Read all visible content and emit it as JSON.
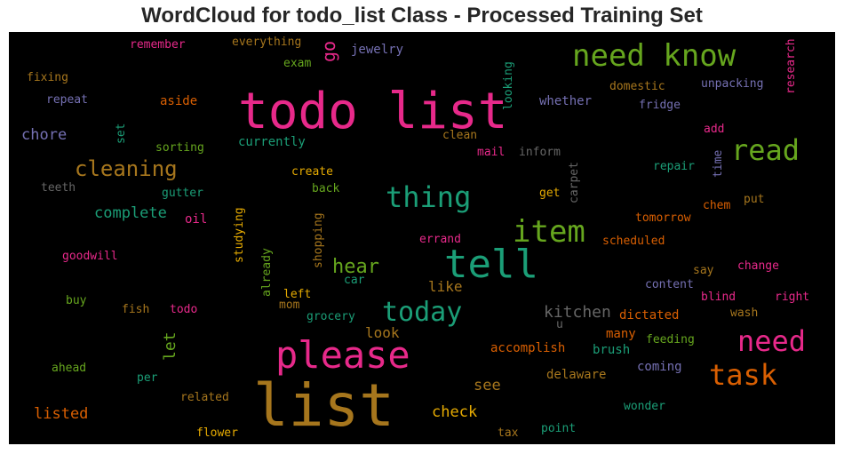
{
  "title": "WordCloud for todo_list Class - Processed Training Set",
  "palette": {
    "magenta": "#e7298a",
    "green": "#66a61e",
    "teal": "#1b9e77",
    "orange": "#d95f02",
    "mustard": "#a6761d",
    "gold": "#e6ab02",
    "purple": "#7570b3",
    "gray": "#666666"
  },
  "words": [
    {
      "id": "list",
      "text": "list",
      "color": "mustard"
    },
    {
      "id": "todo-list",
      "text": "todo list",
      "color": "magenta"
    },
    {
      "id": "please",
      "text": "please",
      "color": "magenta"
    },
    {
      "id": "tell",
      "text": "tell",
      "color": "teal"
    },
    {
      "id": "need-know",
      "text": "need know",
      "color": "green"
    },
    {
      "id": "item",
      "text": "item",
      "color": "green"
    },
    {
      "id": "thing",
      "text": "thing",
      "color": "teal"
    },
    {
      "id": "read",
      "text": "read",
      "color": "green"
    },
    {
      "id": "need",
      "text": "need",
      "color": "magenta"
    },
    {
      "id": "task",
      "text": "task",
      "color": "orange"
    },
    {
      "id": "today",
      "text": "today",
      "color": "teal"
    },
    {
      "id": "cleaning",
      "text": "cleaning",
      "color": "mustard"
    },
    {
      "id": "hear",
      "text": "hear",
      "color": "green"
    },
    {
      "id": "kitchen",
      "text": "kitchen",
      "color": "gray"
    },
    {
      "id": "complete",
      "text": "complete",
      "color": "teal"
    },
    {
      "id": "check",
      "text": "check",
      "color": "gold"
    },
    {
      "id": "listed",
      "text": "listed",
      "color": "orange"
    },
    {
      "id": "chore",
      "text": "chore",
      "color": "purple"
    },
    {
      "id": "go",
      "text": "go",
      "color": "magenta"
    },
    {
      "id": "let",
      "text": "let",
      "color": "green"
    },
    {
      "id": "like",
      "text": "like",
      "color": "mustard"
    },
    {
      "id": "look",
      "text": "look",
      "color": "mustard"
    },
    {
      "id": "see",
      "text": "see",
      "color": "mustard"
    },
    {
      "id": "remember",
      "text": "remember",
      "color": "magenta"
    },
    {
      "id": "everything",
      "text": "everything",
      "color": "mustard"
    },
    {
      "id": "exam",
      "text": "exam",
      "color": "green"
    },
    {
      "id": "jewelry",
      "text": "jewelry",
      "color": "purple"
    },
    {
      "id": "research",
      "text": "research",
      "color": "magenta"
    },
    {
      "id": "fixing",
      "text": "fixing",
      "color": "mustard"
    },
    {
      "id": "repeat",
      "text": "repeat",
      "color": "purple"
    },
    {
      "id": "aside",
      "text": "aside",
      "color": "orange"
    },
    {
      "id": "looking",
      "text": "looking",
      "color": "teal"
    },
    {
      "id": "whether",
      "text": "whether",
      "color": "purple"
    },
    {
      "id": "domestic",
      "text": "domestic",
      "color": "mustard"
    },
    {
      "id": "unpacking",
      "text": "unpacking",
      "color": "purple"
    },
    {
      "id": "fridge",
      "text": "fridge",
      "color": "purple"
    },
    {
      "id": "set",
      "text": "set",
      "color": "teal"
    },
    {
      "id": "sorting",
      "text": "sorting",
      "color": "green"
    },
    {
      "id": "currently",
      "text": "currently",
      "color": "teal"
    },
    {
      "id": "clean",
      "text": "clean",
      "color": "mustard"
    },
    {
      "id": "add",
      "text": "add",
      "color": "magenta"
    },
    {
      "id": "time",
      "text": "time",
      "color": "purple"
    },
    {
      "id": "mail",
      "text": "mail",
      "color": "magenta"
    },
    {
      "id": "inform",
      "text": "inform",
      "color": "gray"
    },
    {
      "id": "carpet",
      "text": "carpet",
      "color": "gray"
    },
    {
      "id": "repair",
      "text": "repair",
      "color": "teal"
    },
    {
      "id": "teeth",
      "text": "teeth",
      "color": "gray"
    },
    {
      "id": "gutter",
      "text": "gutter",
      "color": "teal"
    },
    {
      "id": "create",
      "text": "create",
      "color": "gold"
    },
    {
      "id": "back",
      "text": "back",
      "color": "green"
    },
    {
      "id": "get",
      "text": "get",
      "color": "gold"
    },
    {
      "id": "chem",
      "text": "chem",
      "color": "orange"
    },
    {
      "id": "put",
      "text": "put",
      "color": "mustard"
    },
    {
      "id": "oil",
      "text": "oil",
      "color": "magenta"
    },
    {
      "id": "studying",
      "text": "studying",
      "color": "gold"
    },
    {
      "id": "shopping",
      "text": "shopping",
      "color": "mustard"
    },
    {
      "id": "tomorrow",
      "text": "tomorrow",
      "color": "orange"
    },
    {
      "id": "goodwill",
      "text": "goodwill",
      "color": "magenta"
    },
    {
      "id": "errand",
      "text": "errand",
      "color": "magenta"
    },
    {
      "id": "scheduled",
      "text": "scheduled",
      "color": "orange"
    },
    {
      "id": "already",
      "text": "already",
      "color": "green"
    },
    {
      "id": "car",
      "text": "car",
      "color": "teal"
    },
    {
      "id": "say",
      "text": "say",
      "color": "mustard"
    },
    {
      "id": "change",
      "text": "change",
      "color": "magenta"
    },
    {
      "id": "content",
      "text": "content",
      "color": "purple"
    },
    {
      "id": "left",
      "text": "left",
      "color": "gold"
    },
    {
      "id": "buy",
      "text": "buy",
      "color": "green"
    },
    {
      "id": "mom",
      "text": "mom",
      "color": "mustard"
    },
    {
      "id": "blind",
      "text": "blind",
      "color": "magenta"
    },
    {
      "id": "right",
      "text": "right",
      "color": "magenta"
    },
    {
      "id": "fish",
      "text": "fish",
      "color": "mustard"
    },
    {
      "id": "todo",
      "text": "todo",
      "color": "magenta"
    },
    {
      "id": "grocery",
      "text": "grocery",
      "color": "teal"
    },
    {
      "id": "dictated",
      "text": "dictated",
      "color": "orange"
    },
    {
      "id": "wash",
      "text": "wash",
      "color": "mustard"
    },
    {
      "id": "u",
      "text": "u",
      "color": "gray"
    },
    {
      "id": "many",
      "text": "many",
      "color": "orange"
    },
    {
      "id": "feeding",
      "text": "feeding",
      "color": "green"
    },
    {
      "id": "accomplish",
      "text": "accomplish",
      "color": "orange"
    },
    {
      "id": "brush",
      "text": "brush",
      "color": "teal"
    },
    {
      "id": "ahead",
      "text": "ahead",
      "color": "green"
    },
    {
      "id": "coming",
      "text": "coming",
      "color": "purple"
    },
    {
      "id": "per",
      "text": "per",
      "color": "teal"
    },
    {
      "id": "delaware",
      "text": "delaware",
      "color": "mustard"
    },
    {
      "id": "related",
      "text": "related",
      "color": "mustard"
    },
    {
      "id": "wonder",
      "text": "wonder",
      "color": "teal"
    },
    {
      "id": "tax",
      "text": "tax",
      "color": "mustard"
    },
    {
      "id": "point",
      "text": "point",
      "color": "teal"
    },
    {
      "id": "flower",
      "text": "flower",
      "color": "gold"
    }
  ]
}
